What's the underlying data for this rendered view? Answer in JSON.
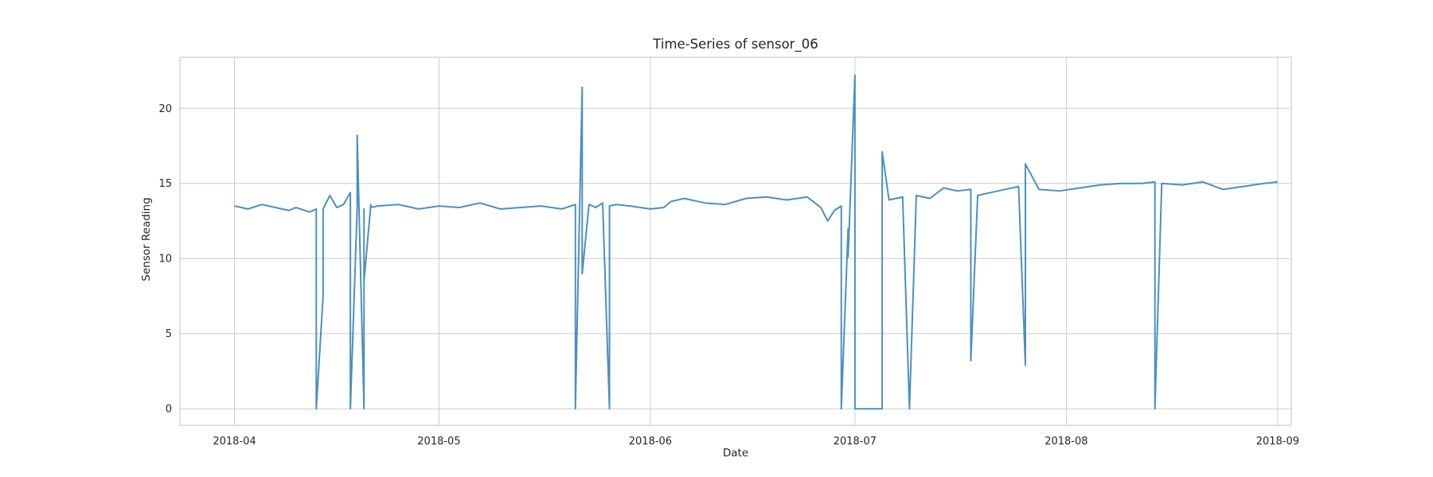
{
  "chart_data": {
    "type": "line",
    "title": "Time-Series of sensor_06",
    "xlabel": "Date",
    "ylabel": "Sensor Reading",
    "x_ticks": [
      "2018-04",
      "2018-05",
      "2018-06",
      "2018-07",
      "2018-08",
      "2018-09"
    ],
    "y_ticks": [
      0,
      5,
      10,
      15,
      20
    ],
    "xlim": [
      "2018-03-24",
      "2018-09-03"
    ],
    "ylim": [
      -1.1,
      23.4
    ],
    "grid": true,
    "colors": {
      "line": "#4a90c2",
      "grid": "#cccccc",
      "frame": "#cccccc"
    },
    "series": [
      {
        "x": [
          "2018-04-01",
          "2018-04-03",
          "2018-04-05",
          "2018-04-07",
          "2018-04-09",
          "2018-04-10",
          "2018-04-12",
          "2018-04-13",
          "2018-04-13",
          "2018-04-14",
          "2018-04-14",
          "2018-04-15",
          "2018-04-16",
          "2018-04-17",
          "2018-04-18",
          "2018-04-18",
          "2018-04-19",
          "2018-04-19",
          "2018-04-20",
          "2018-04-20",
          "2018-04-20",
          "2018-04-21",
          "2018-04-21",
          "2018-04-22",
          "2018-04-25",
          "2018-04-28",
          "2018-05-01",
          "2018-05-04",
          "2018-05-07",
          "2018-05-10",
          "2018-05-13",
          "2018-05-16",
          "2018-05-19",
          "2018-05-21",
          "2018-05-21",
          "2018-05-22",
          "2018-05-22",
          "2018-05-23",
          "2018-05-24",
          "2018-05-25",
          "2018-05-26",
          "2018-05-26",
          "2018-05-27",
          "2018-05-29",
          "2018-06-01",
          "2018-06-03",
          "2018-06-04",
          "2018-06-06",
          "2018-06-09",
          "2018-06-12",
          "2018-06-15",
          "2018-06-18",
          "2018-06-21",
          "2018-06-24",
          "2018-06-26",
          "2018-06-27",
          "2018-06-28",
          "2018-06-29",
          "2018-06-29",
          "2018-06-30",
          "2018-06-30",
          "2018-07-01",
          "2018-07-01",
          "2018-07-02",
          "2018-07-03",
          "2018-07-05",
          "2018-07-05",
          "2018-07-06",
          "2018-07-07",
          "2018-07-08",
          "2018-07-09",
          "2018-07-10",
          "2018-07-12",
          "2018-07-14",
          "2018-07-16",
          "2018-07-18",
          "2018-07-18",
          "2018-07-19",
          "2018-07-21",
          "2018-07-23",
          "2018-07-25",
          "2018-07-26",
          "2018-07-26",
          "2018-07-28",
          "2018-07-31",
          "2018-08-03",
          "2018-08-06",
          "2018-08-09",
          "2018-08-12",
          "2018-08-14",
          "2018-08-14",
          "2018-08-15",
          "2018-08-18",
          "2018-08-21",
          "2018-08-24",
          "2018-08-27",
          "2018-08-30",
          "2018-09-01"
        ],
        "y": [
          13.5,
          13.3,
          13.6,
          13.4,
          13.2,
          13.4,
          13.1,
          13.3,
          0,
          7.5,
          13.3,
          14.2,
          13.4,
          13.6,
          14.4,
          0,
          13.4,
          18.2,
          0,
          13.3,
          8.5,
          13.6,
          13.4,
          13.5,
          13.6,
          13.3,
          13.5,
          13.4,
          13.7,
          13.3,
          13.4,
          13.5,
          13.3,
          13.6,
          0,
          21.4,
          9.0,
          13.6,
          13.4,
          13.7,
          0,
          13.5,
          13.6,
          13.5,
          13.3,
          13.4,
          13.8,
          14.0,
          13.7,
          13.6,
          14.0,
          14.1,
          13.9,
          14.1,
          13.4,
          12.5,
          13.2,
          13.5,
          0,
          12.0,
          10.1,
          22.2,
          0,
          0,
          0,
          0,
          17.1,
          13.9,
          14.0,
          14.1,
          0,
          14.2,
          14.0,
          14.7,
          14.5,
          14.6,
          3.2,
          14.2,
          14.4,
          14.6,
          14.8,
          2.9,
          16.3,
          14.6,
          14.5,
          14.7,
          14.9,
          15.0,
          15.0,
          15.1,
          0,
          15.0,
          14.9,
          15.1,
          14.6,
          14.8,
          15.0,
          15.1
        ]
      }
    ]
  }
}
